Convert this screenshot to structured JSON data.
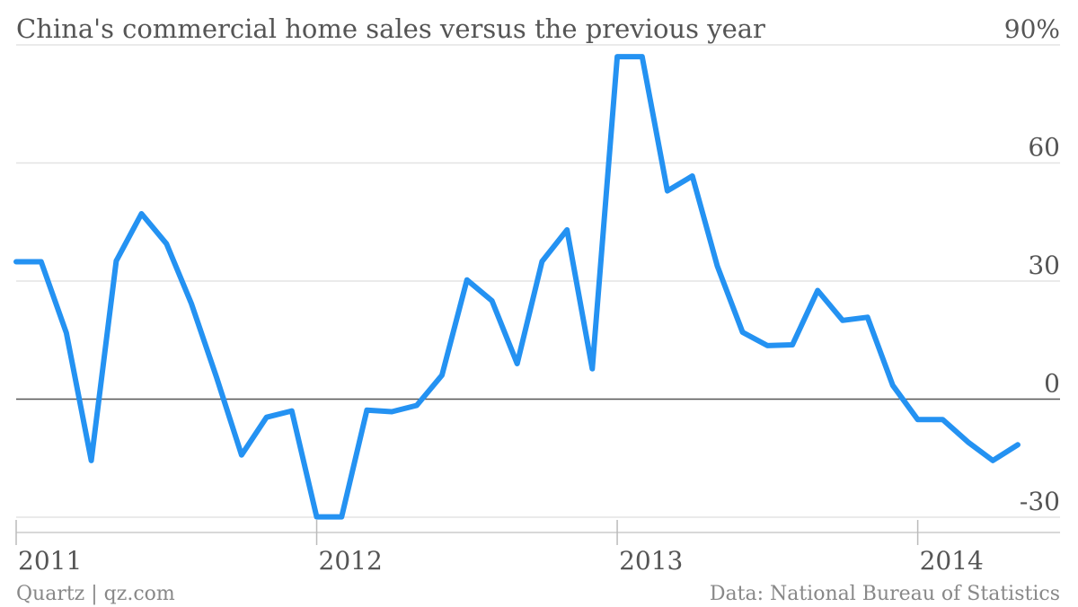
{
  "chart_data": {
    "type": "line",
    "title": "China's commercial home sales versus the previous year",
    "y_ticks": [
      {
        "value": 90,
        "label": "90%"
      },
      {
        "value": 60,
        "label": "60"
      },
      {
        "value": 30,
        "label": "30"
      },
      {
        "value": 0,
        "label": "0"
      },
      {
        "value": -30,
        "label": "-30"
      }
    ],
    "ylim": [
      -30,
      90
    ],
    "x_ticks": [
      {
        "value": 2011,
        "label": "2011"
      },
      {
        "value": 2012,
        "label": "2012"
      },
      {
        "value": 2013,
        "label": "2013"
      },
      {
        "value": 2014,
        "label": "2014"
      }
    ],
    "xlim": [
      2011,
      2014.45
    ],
    "grid": true,
    "series": [
      {
        "color": "#2492f2",
        "x": [
          2011.0,
          2011.083,
          2011.167,
          2011.25,
          2011.333,
          2011.417,
          2011.5,
          2011.583,
          2011.667,
          2011.75,
          2011.833,
          2011.917,
          2012.0,
          2012.083,
          2012.167,
          2012.25,
          2012.333,
          2012.417,
          2012.5,
          2012.583,
          2012.667,
          2012.75,
          2012.833,
          2012.917,
          2013.0,
          2013.083,
          2013.167,
          2013.25,
          2013.333,
          2013.417,
          2013.5,
          2013.583,
          2013.667,
          2013.75,
          2013.833,
          2013.917,
          2014.0,
          2014.083,
          2014.167,
          2014.25,
          2014.333
        ],
        "values": [
          34.9,
          34.9,
          16.8,
          -15.6,
          35.1,
          47.1,
          39.5,
          24.3,
          5.5,
          -14.2,
          -4.6,
          -3.0,
          -29.9,
          -29.9,
          -2.8,
          -3.2,
          -1.6,
          6.1,
          30.3,
          25.0,
          9.0,
          35.0,
          43.0,
          7.7,
          87.0,
          87.0,
          52.9,
          56.7,
          33.8,
          17.0,
          13.6,
          13.8,
          27.6,
          20.0,
          20.8,
          3.5,
          -5.2,
          -5.2,
          -10.9,
          -15.6,
          -11.6
        ]
      }
    ],
    "footer": {
      "source": "Quartz | qz.com",
      "data": "Data: National Bureau of Statistics"
    }
  }
}
